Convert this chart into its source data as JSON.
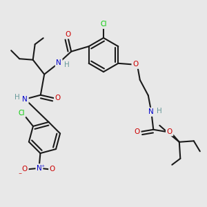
{
  "bg_color": "#e8e8e8",
  "bond_color": "#1a1a1a",
  "bond_width": 1.5,
  "dbo": 0.015,
  "atom_colors": {
    "N": "#0000cc",
    "O": "#cc0000",
    "Cl": "#00cc00",
    "H": "#669999",
    "C": "#1a1a1a"
  },
  "fs": 7.5,
  "figsize": [
    3.0,
    3.0
  ],
  "dpi": 100
}
